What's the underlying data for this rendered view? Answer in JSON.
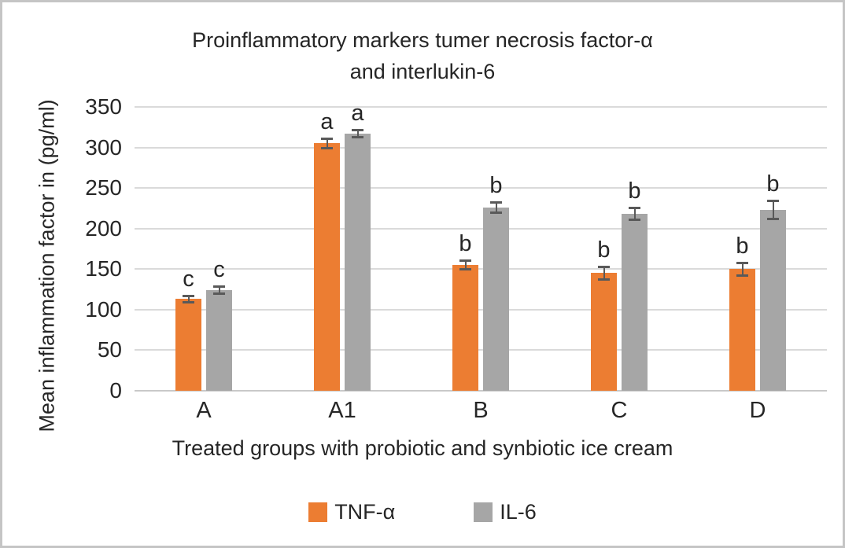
{
  "chart_data": {
    "type": "bar",
    "title_line1": "Proinflammatory markers tumer necrosis factor-α",
    "title_line2": "and interlukin-6",
    "xlabel": "Treated groups with probiotic and synbiotic ice cream",
    "ylabel": "Mean inflammation factor in (pg/ml)",
    "categories": [
      "A",
      "A1",
      "B",
      "C",
      "D"
    ],
    "series": [
      {
        "name": "TNF-α",
        "color": "#EC7D32",
        "values": [
          113,
          305,
          155,
          145,
          150
        ],
        "errors": [
          4,
          6,
          6,
          8,
          8
        ],
        "letters": [
          "c",
          "a",
          "b",
          "b",
          "b"
        ]
      },
      {
        "name": "IL-6",
        "color": "#A6A6A6",
        "values": [
          124,
          317,
          226,
          218,
          223
        ],
        "errors": [
          5,
          5,
          7,
          8,
          12
        ],
        "letters": [
          "c",
          "a",
          "b",
          "b",
          "b"
        ]
      }
    ],
    "ylim": [
      0,
      350
    ],
    "ytick_step": 50,
    "yticks": [
      "0",
      "50",
      "100",
      "150",
      "200",
      "250",
      "300",
      "350"
    ],
    "grid": true,
    "legend_position": "bottom",
    "colors": {
      "error_bar": "#595959",
      "gridline": "#DADADA",
      "axis_line": "#C9C9C9",
      "text": "#262626",
      "frame_border": "#C5C5C5"
    }
  }
}
